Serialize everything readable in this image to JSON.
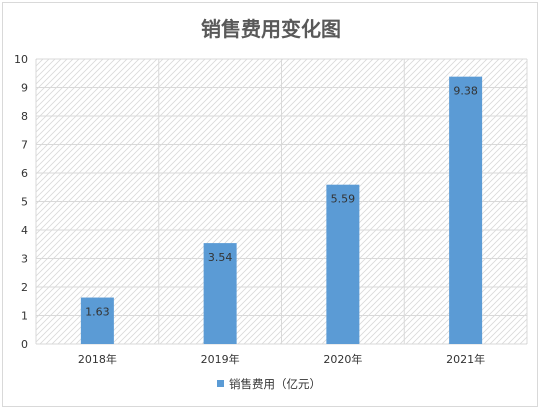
{
  "chart_data": {
    "type": "bar",
    "title": "销售费用变化图",
    "categories": [
      "2018年",
      "2019年",
      "2020年",
      "2021年"
    ],
    "series": [
      {
        "name": "销售费用（亿元）",
        "values": [
          1.63,
          3.54,
          5.59,
          9.38
        ],
        "data_labels": [
          "1.63",
          "3.54",
          "5.59",
          "9.38"
        ]
      }
    ],
    "ylim": [
      0,
      10
    ],
    "yticks": [
      "0",
      "1",
      "2",
      "3",
      "4",
      "5",
      "6",
      "7",
      "8",
      "9",
      "10"
    ],
    "xlabel": "",
    "ylabel": "",
    "grid": true,
    "plot_background": "diagonal-hatch",
    "legend_position": "bottom",
    "colors": {
      "bar": "#5B9BD5",
      "grid": "#d9d9d9",
      "hatch": "#d9d9d9",
      "text": "#333333",
      "title": "#595959"
    }
  }
}
